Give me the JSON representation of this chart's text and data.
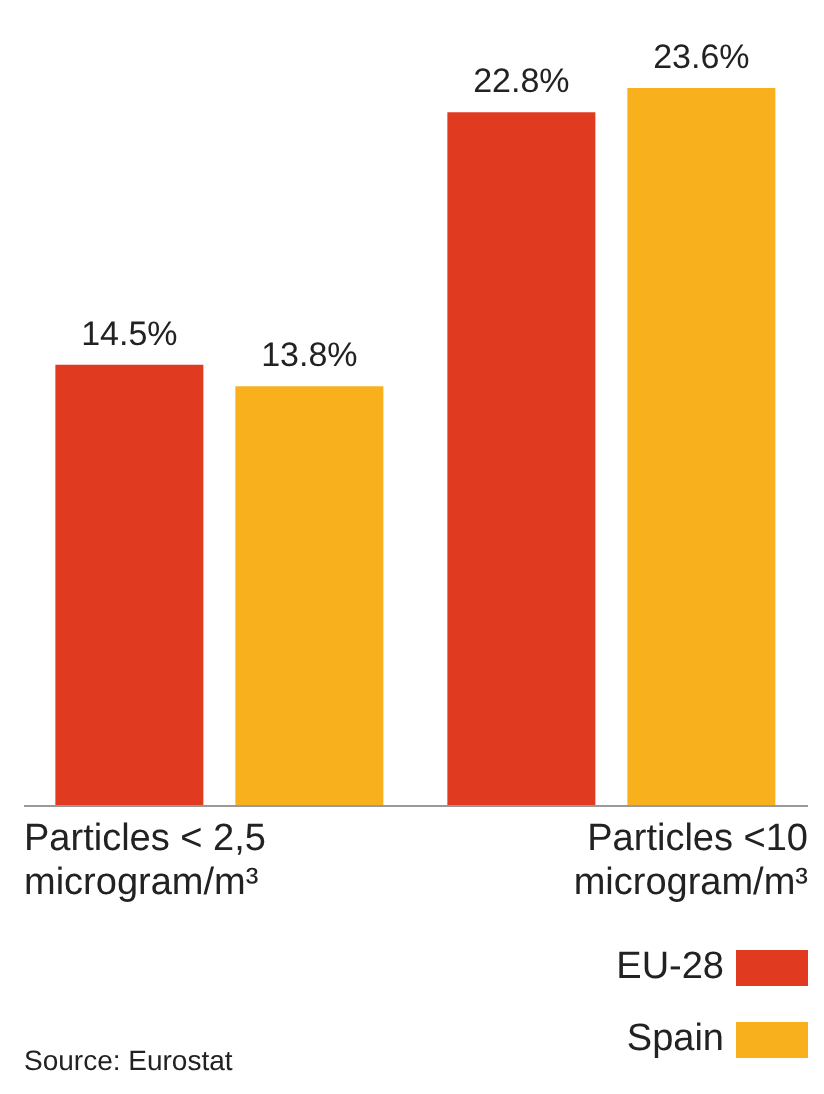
{
  "chart_data": {
    "type": "bar",
    "categories": [
      "Particles < 2,5 microgram/m³",
      "Particles <10 microgram/m³"
    ],
    "series": [
      {
        "name": "EU-28",
        "color": "#e03b20",
        "values": [
          14.5,
          22.8
        ],
        "value_labels": [
          "14.5%",
          "22.8%"
        ]
      },
      {
        "name": "Spain",
        "color": "#f8b01c",
        "values": [
          13.8,
          23.6
        ],
        "value_labels": [
          "13.8%",
          "23.6%"
        ]
      }
    ],
    "legend": "bottom right",
    "annotations": [
      "Source: Eurostat"
    ]
  }
}
